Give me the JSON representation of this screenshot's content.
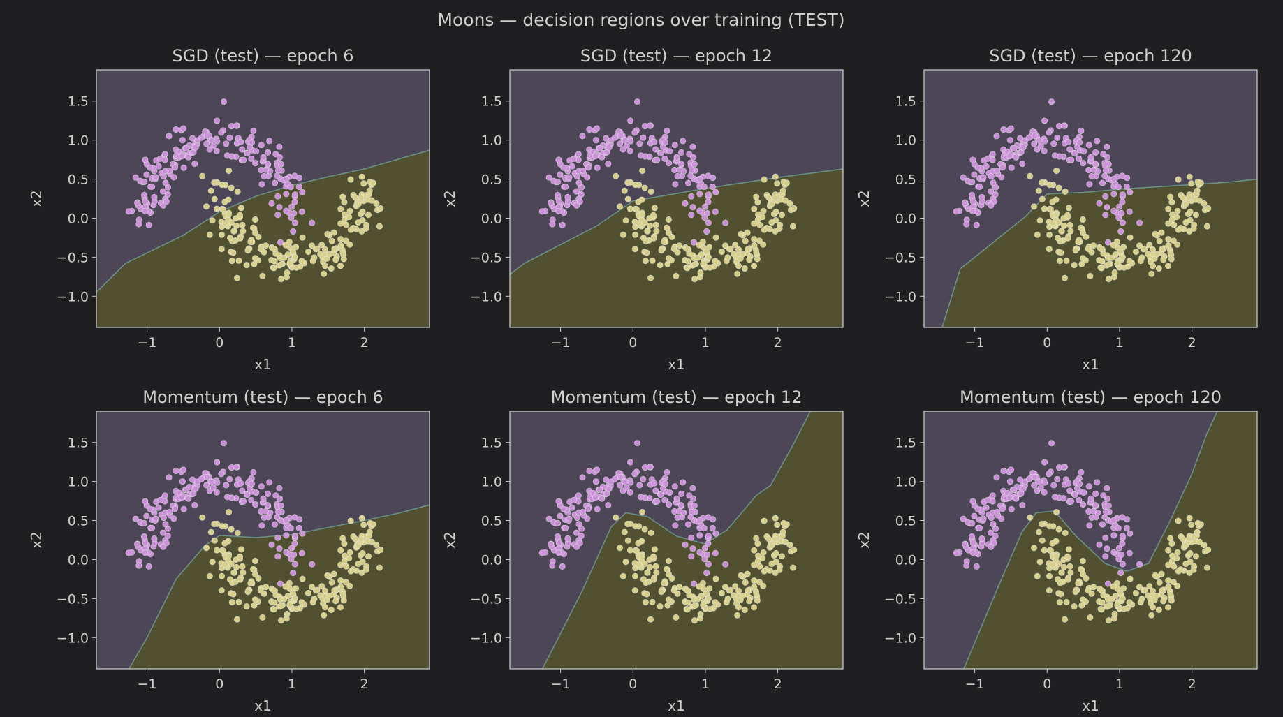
{
  "figure": {
    "suptitle": "Moons — decision regions over training (TEST)",
    "background": "#1f1f22"
  },
  "colors": {
    "region_class0": "#4d4657",
    "region_class1": "#515131",
    "points_class0": "#c992d6",
    "points_class1": "#d6cf8c",
    "boundary": "#6d8f86",
    "axes_text": "#cfcfcf",
    "frame": "#cfcfcf"
  },
  "chart_data": [
    {
      "type": "scatter",
      "title": "SGD (test) — epoch 6",
      "optimizer": "SGD",
      "epoch": 6,
      "xlabel": "x1",
      "ylabel": "x2",
      "xlim": [
        -1.7,
        2.9
      ],
      "ylim": [
        -1.4,
        1.9
      ],
      "xticks": [
        "−1",
        "0",
        "1",
        "2"
      ],
      "yticks": [
        "−1.0",
        "−0.5",
        "0.0",
        "0.5",
        "1.0",
        "1.5"
      ],
      "boundary": [
        [
          -1.7,
          -0.95
        ],
        [
          -1.3,
          -0.58
        ],
        [
          -0.5,
          -0.22
        ],
        [
          0.0,
          0.08
        ],
        [
          0.5,
          0.28
        ],
        [
          1.0,
          0.42
        ],
        [
          1.5,
          0.53
        ],
        [
          2.0,
          0.63
        ],
        [
          2.9,
          0.87
        ]
      ]
    },
    {
      "type": "scatter",
      "title": "SGD (test) — epoch 12",
      "optimizer": "SGD",
      "epoch": 12,
      "xlabel": "x1",
      "ylabel": "x2",
      "xlim": [
        -1.7,
        2.9
      ],
      "ylim": [
        -1.4,
        1.9
      ],
      "xticks": [
        "−1",
        "0",
        "1",
        "2"
      ],
      "yticks": [
        "−1.0",
        "−0.5",
        "0.0",
        "0.5",
        "1.0",
        "1.5"
      ],
      "boundary": [
        [
          -1.7,
          -0.72
        ],
        [
          -1.5,
          -0.58
        ],
        [
          -0.5,
          -0.1
        ],
        [
          0.0,
          0.22
        ],
        [
          0.5,
          0.3
        ],
        [
          1.0,
          0.38
        ],
        [
          1.5,
          0.45
        ],
        [
          2.0,
          0.52
        ],
        [
          2.9,
          0.63
        ]
      ]
    },
    {
      "type": "scatter",
      "title": "SGD (test) — epoch 120",
      "optimizer": "SGD",
      "epoch": 120,
      "xlabel": "x1",
      "ylabel": "x2",
      "xlim": [
        -1.7,
        2.9
      ],
      "ylim": [
        -1.4,
        1.9
      ],
      "xticks": [
        "−1",
        "0",
        "1",
        "2"
      ],
      "yticks": [
        "−1.0",
        "−0.5",
        "0.0",
        "0.5",
        "1.0",
        "1.5"
      ],
      "boundary": [
        [
          -1.45,
          -1.4
        ],
        [
          -1.2,
          -0.65
        ],
        [
          -0.3,
          0.02
        ],
        [
          0.0,
          0.31
        ],
        [
          0.5,
          0.33
        ],
        [
          1.0,
          0.37
        ],
        [
          1.5,
          0.4
        ],
        [
          2.0,
          0.43
        ],
        [
          2.5,
          0.46
        ],
        [
          2.9,
          0.5
        ]
      ]
    },
    {
      "type": "scatter",
      "title": "Momentum (test) — epoch 6",
      "optimizer": "Momentum",
      "epoch": 6,
      "xlabel": "x1",
      "ylabel": "x2",
      "xlim": [
        -1.7,
        2.9
      ],
      "ylim": [
        -1.4,
        1.9
      ],
      "xticks": [
        "−1",
        "0",
        "1",
        "2"
      ],
      "yticks": [
        "−1.0",
        "−0.5",
        "0.0",
        "0.5",
        "1.0",
        "1.5"
      ],
      "boundary": [
        [
          -1.25,
          -1.4
        ],
        [
          -1.0,
          -1.0
        ],
        [
          -0.6,
          -0.25
        ],
        [
          -0.2,
          0.18
        ],
        [
          0.0,
          0.31
        ],
        [
          0.5,
          0.28
        ],
        [
          1.0,
          0.32
        ],
        [
          1.5,
          0.41
        ],
        [
          2.0,
          0.5
        ],
        [
          2.5,
          0.6
        ],
        [
          2.9,
          0.7
        ]
      ]
    },
    {
      "type": "scatter",
      "title": "Momentum (test) — epoch 12",
      "optimizer": "Momentum",
      "epoch": 12,
      "xlabel": "x1",
      "ylabel": "x2",
      "xlim": [
        -1.7,
        2.9
      ],
      "ylim": [
        -1.4,
        1.9
      ],
      "xticks": [
        "−1",
        "0",
        "1",
        "2"
      ],
      "yticks": [
        "−1.0",
        "−0.5",
        "0.0",
        "0.5",
        "1.0",
        "1.5"
      ],
      "boundary": [
        [
          -1.25,
          -1.4
        ],
        [
          -0.7,
          -0.4
        ],
        [
          -0.3,
          0.42
        ],
        [
          -0.1,
          0.6
        ],
        [
          0.2,
          0.55
        ],
        [
          0.6,
          0.3
        ],
        [
          1.0,
          0.2
        ],
        [
          1.3,
          0.38
        ],
        [
          1.7,
          0.82
        ],
        [
          1.9,
          0.95
        ],
        [
          2.2,
          1.45
        ],
        [
          2.45,
          1.9
        ]
      ]
    },
    {
      "type": "scatter",
      "title": "Momentum (test) — epoch 120",
      "optimizer": "Momentum",
      "epoch": 120,
      "xlabel": "x1",
      "ylabel": "x2",
      "xlim": [
        -1.7,
        2.9
      ],
      "ylim": [
        -1.4,
        1.9
      ],
      "xticks": [
        "−1",
        "0",
        "1",
        "2"
      ],
      "yticks": [
        "−1.0",
        "−0.5",
        "0.0",
        "0.5",
        "1.0",
        "1.5"
      ],
      "boundary": [
        [
          -1.15,
          -1.4
        ],
        [
          -0.7,
          -0.4
        ],
        [
          -0.35,
          0.35
        ],
        [
          -0.15,
          0.6
        ],
        [
          0.1,
          0.62
        ],
        [
          0.4,
          0.3
        ],
        [
          0.8,
          -0.05
        ],
        [
          1.1,
          -0.15
        ],
        [
          1.4,
          -0.05
        ],
        [
          1.7,
          0.5
        ],
        [
          2.0,
          1.1
        ],
        [
          2.2,
          1.6
        ],
        [
          2.35,
          1.9
        ]
      ]
    }
  ]
}
